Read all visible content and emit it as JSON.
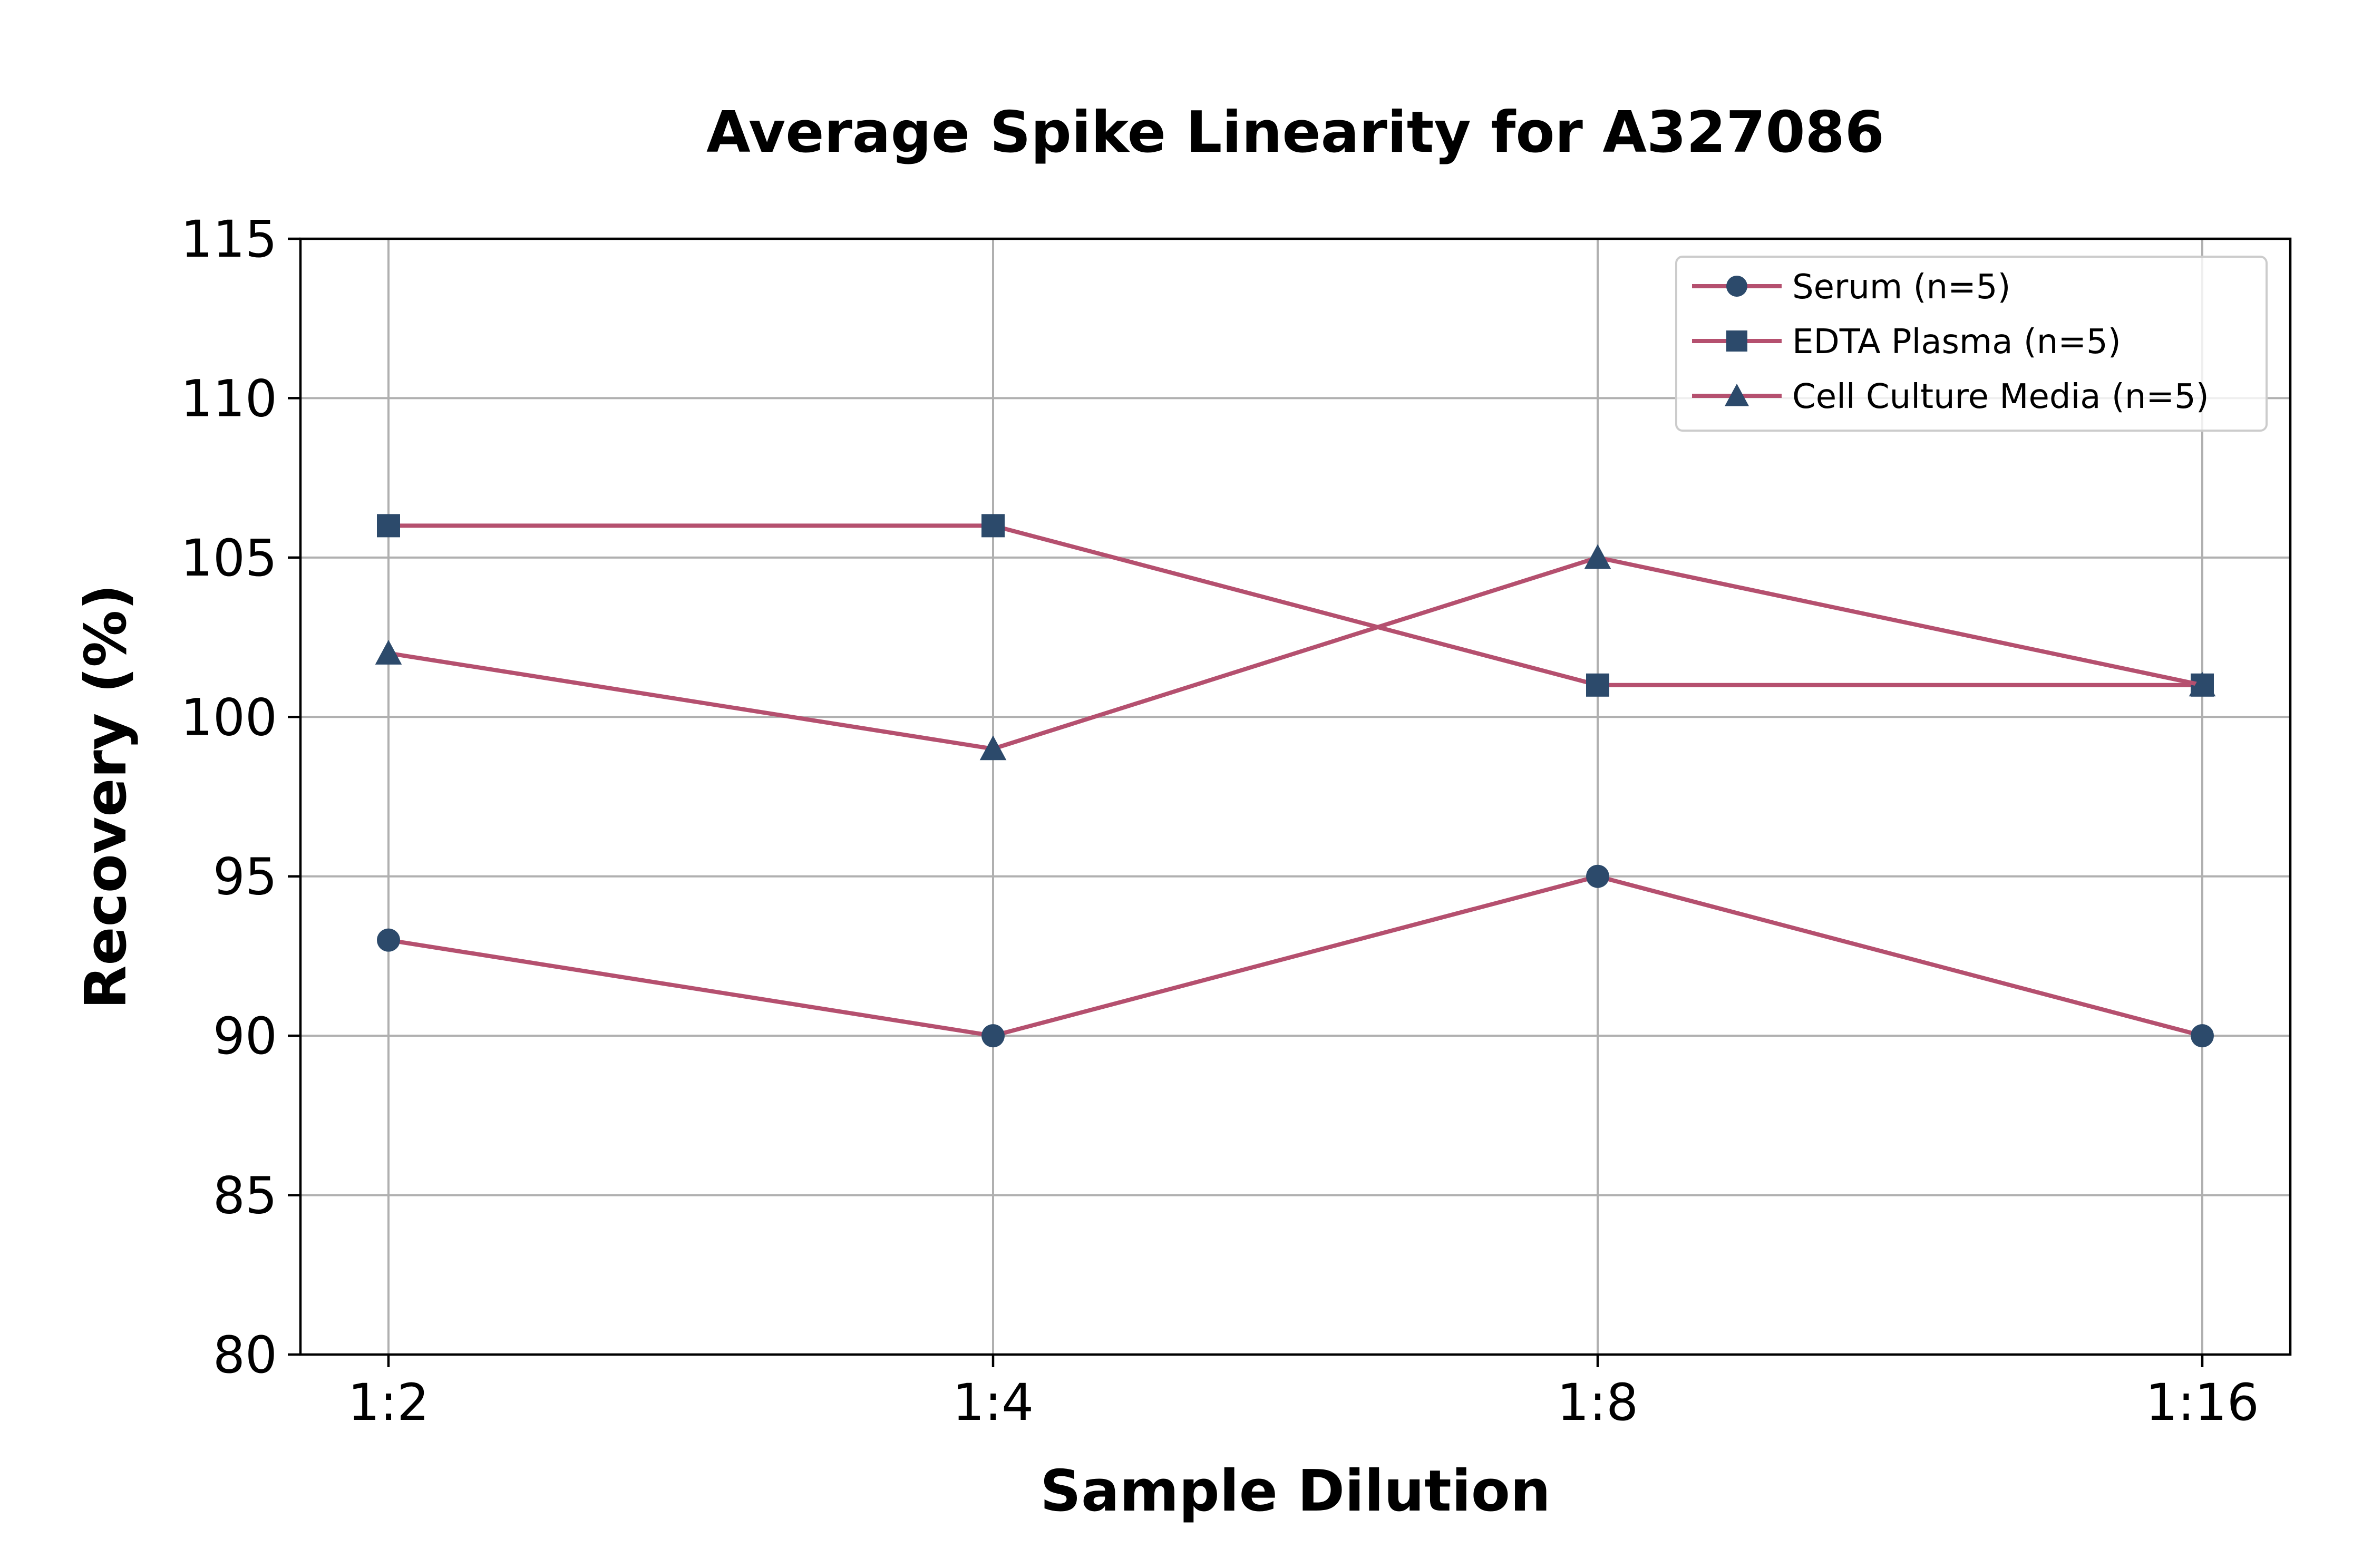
{
  "chart_data": {
    "type": "line",
    "title": "Average Spike Linearity for A327086",
    "xlabel": "Sample Dilution",
    "ylabel": "Recovery (%)",
    "categories": [
      "1:2",
      "1:4",
      "1:8",
      "1:16"
    ],
    "ylim": [
      80,
      115
    ],
    "yticks": [
      80,
      85,
      90,
      95,
      100,
      105,
      110,
      115
    ],
    "grid": true,
    "legend_position": "top-right",
    "line_color": "#b5506f",
    "marker_color": "#2c4a6b",
    "series": [
      {
        "name": "Serum (n=5)",
        "marker": "circle",
        "values": [
          93,
          90,
          95,
          90
        ]
      },
      {
        "name": "EDTA Plasma (n=5)",
        "marker": "square",
        "values": [
          106,
          106,
          101,
          101
        ]
      },
      {
        "name": "Cell Culture Media (n=5)",
        "marker": "triangle",
        "values": [
          102,
          99,
          105,
          101
        ]
      }
    ]
  }
}
